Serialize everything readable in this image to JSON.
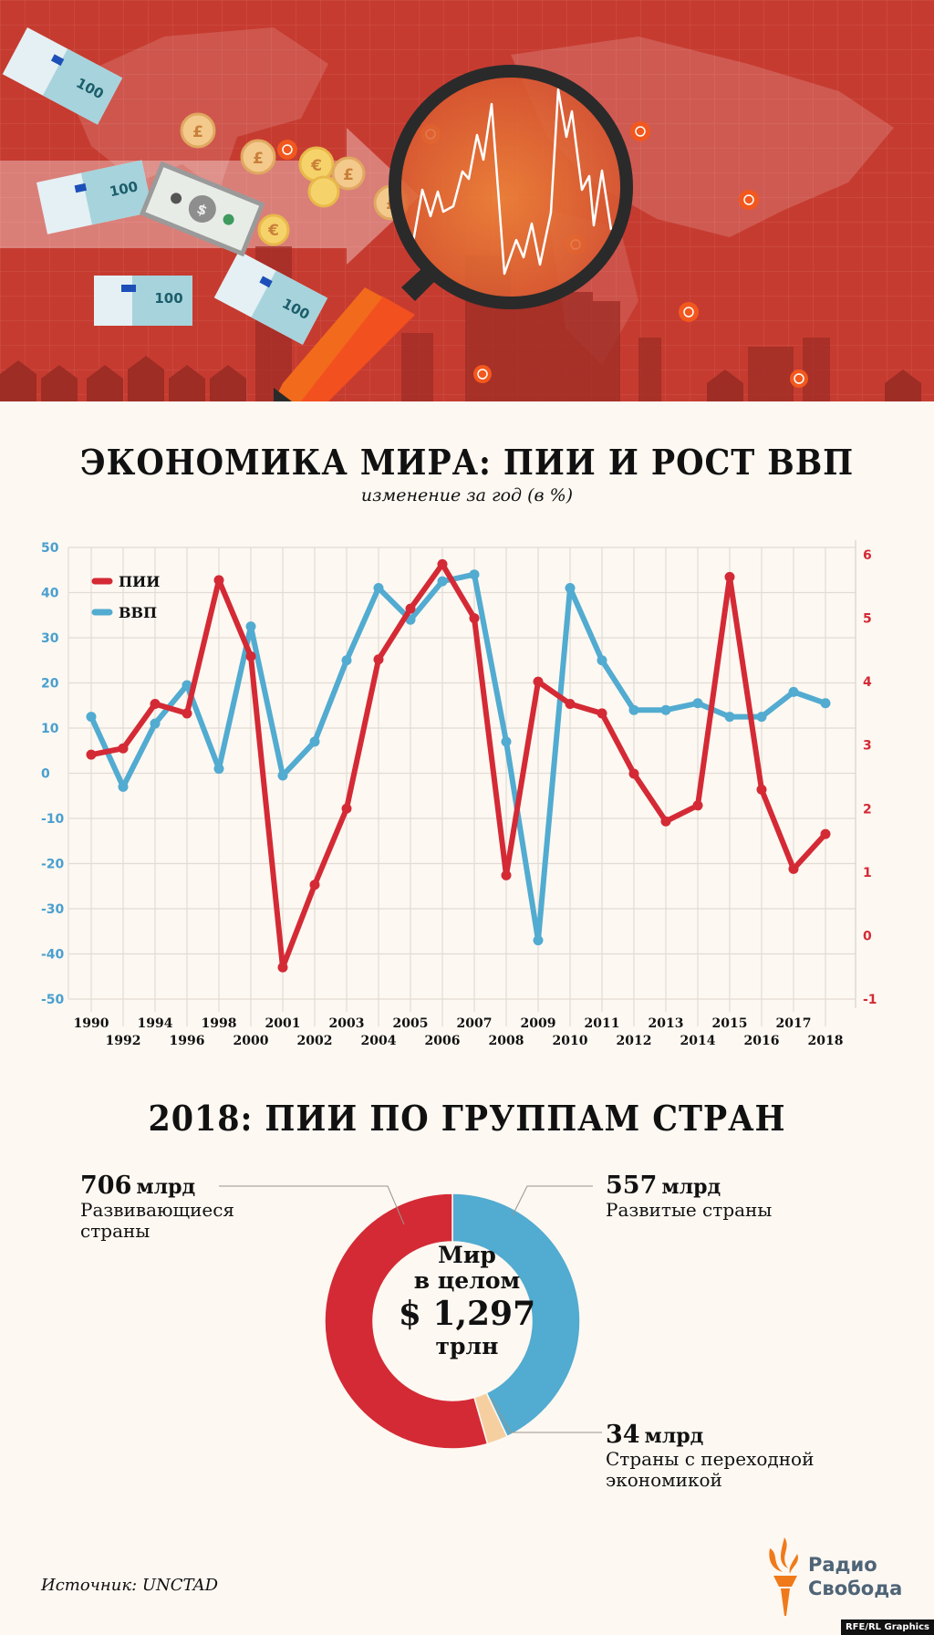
{
  "header": {
    "illustration": "world-economy-magnifier-illustration",
    "banknote_label": "100",
    "colors": {
      "background": "#c63b30",
      "magnifier_frame": "#2a2a2a",
      "handle": "#f26a1b",
      "coin": "#f1c46a"
    }
  },
  "chart_section": {
    "title": "ЭКОНОМИКА МИРА: ПИИ И РОСТ ВВП",
    "subtitle": "изменение за год (в %)"
  },
  "chart_data": [
    {
      "type": "line",
      "title": "ЭКОНОМИКА МИРА: ПИИ И РОСТ ВВП",
      "subtitle": "изменение за год (в %)",
      "x": [
        "1990",
        "1992",
        "1994",
        "1996",
        "1998",
        "2000",
        "2001",
        "2002",
        "2003",
        "2004",
        "2005",
        "2006",
        "2007",
        "2008",
        "2009",
        "2010",
        "2011",
        "2012",
        "2013",
        "2014",
        "2015",
        "2016",
        "2017",
        "2018"
      ],
      "series": [
        {
          "name": "ПИИ",
          "axis": "right",
          "color": "#d42a35",
          "values": [
            2.85,
            2.95,
            3.65,
            3.5,
            5.6,
            4.4,
            -0.5,
            0.8,
            2.0,
            4.35,
            5.15,
            5.85,
            5.0,
            0.95,
            4.0,
            3.65,
            3.5,
            2.55,
            1.8,
            2.05,
            5.65,
            2.3,
            1.05,
            1.6
          ]
        },
        {
          "name": "ВВП",
          "axis": "left",
          "color": "#52abd0",
          "values": [
            12.5,
            -3,
            11,
            19.5,
            1,
            32.5,
            -0.5,
            7,
            25,
            41,
            34,
            42.5,
            44,
            7,
            -37,
            41,
            25,
            14,
            14,
            15.5,
            12.5,
            12.5,
            18,
            15.5
          ]
        }
      ],
      "y_left": {
        "ticks": [
          "50",
          "40",
          "30",
          "20",
          "10",
          "0",
          "-10",
          "-20",
          "-30",
          "-40",
          "-50"
        ],
        "range": [
          -50,
          50
        ],
        "color": "#4a9fcf"
      },
      "y_right": {
        "ticks": [
          "6",
          "5",
          "4",
          "3",
          "2",
          "1",
          "0",
          "-1"
        ],
        "range": [
          -1,
          6
        ],
        "color": "#d42a35"
      },
      "xlabel": "",
      "ylabel": "",
      "grid": true,
      "legend": {
        "position": "top-left",
        "entries": [
          "ПИИ",
          "ВВП"
        ]
      }
    },
    {
      "type": "pie",
      "variant": "donut",
      "title": "2018: ПИИ ПО ГРУППАМ СТРАН",
      "categories": [
        "Развитые страны",
        "Страны с переходной экономикой",
        "Развивающиеся страны"
      ],
      "values": [
        557,
        34,
        706
      ],
      "unit": "млрд",
      "colors": [
        "#52abd0",
        "#f6cfa0",
        "#d42a35"
      ],
      "total_label": "$ 1,297 трлн"
    }
  ],
  "donut_section": {
    "title": "2018: ПИИ ПО ГРУППАМ СТРАН",
    "center": {
      "line1": "Мир",
      "line2": "в целом",
      "value": "$ 1,297",
      "unit": "трлн"
    },
    "developing": {
      "value": "706",
      "unit": "млрд",
      "label": "Развивающиеся страны"
    },
    "developed": {
      "value": "557",
      "unit": "млрд",
      "label": "Развитые страны"
    },
    "transition": {
      "value": "34",
      "unit": "млрд",
      "label": "Страны с переходной экономикой"
    }
  },
  "footer": {
    "source": "Источник: UNCTAD",
    "logo_line1": "Радио",
    "logo_line2": "Свобода",
    "credit": "RFE/RL Graphics"
  }
}
